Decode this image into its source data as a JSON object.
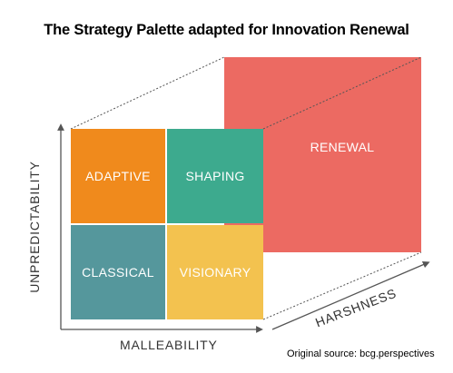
{
  "title": "The Strategy Palette adapted for Innovation Renewal",
  "quadrants": {
    "adaptive": "ADAPTIVE",
    "shaping": "SHAPING",
    "classical": "CLASSICAL",
    "visionary": "VISIONARY",
    "renewal": "RENEWAL"
  },
  "axes": {
    "y": "UNPREDICTABILITY",
    "x": "MALLEABILITY",
    "z": "HARSHNESS"
  },
  "source": "Original source: bcg.perspectives",
  "colors": {
    "adaptive": "#f08a1c",
    "shaping": "#3daa8e",
    "classical": "#55979c",
    "visionary": "#f3c24f",
    "renewal": "#ec6a62",
    "axis": "#555555"
  }
}
